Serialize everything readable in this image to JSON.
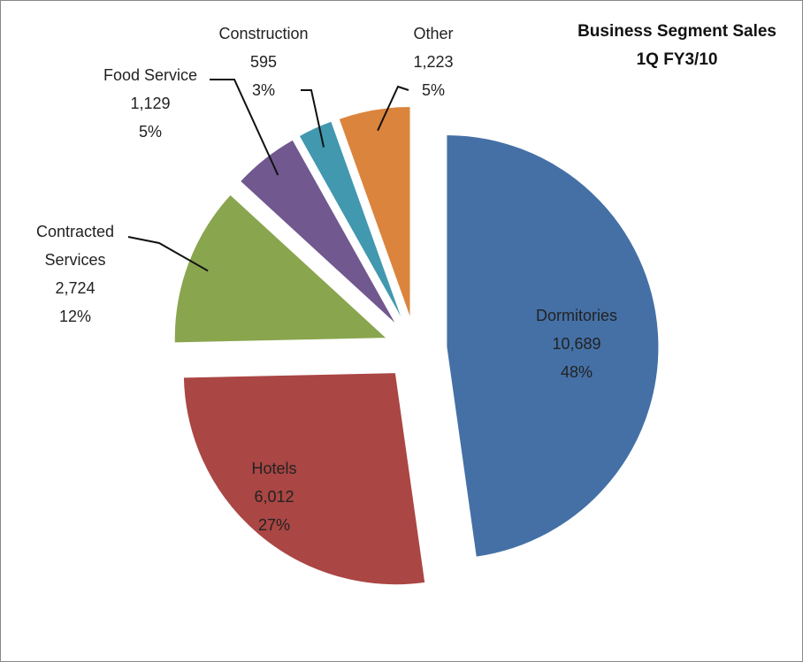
{
  "chart_data": {
    "type": "pie",
    "title": "Business Segment Sales",
    "subtitle": "1Q FY3/10",
    "categories": [
      "Dormitories",
      "Hotels",
      "Contracted Services",
      "Food Service",
      "Construction",
      "Other"
    ],
    "values": [
      10689,
      6012,
      2724,
      1129,
      595,
      1223
    ],
    "value_labels": [
      "10,689",
      "6,012",
      "2,724",
      "1,129",
      "595",
      "1,223"
    ],
    "percent_labels": [
      "48%",
      "27%",
      "12%",
      "5%",
      "3%",
      "5%"
    ],
    "colors": [
      "#4470a6",
      "#aa4644",
      "#89a54e",
      "#71588f",
      "#4198af",
      "#db843d"
    ]
  }
}
